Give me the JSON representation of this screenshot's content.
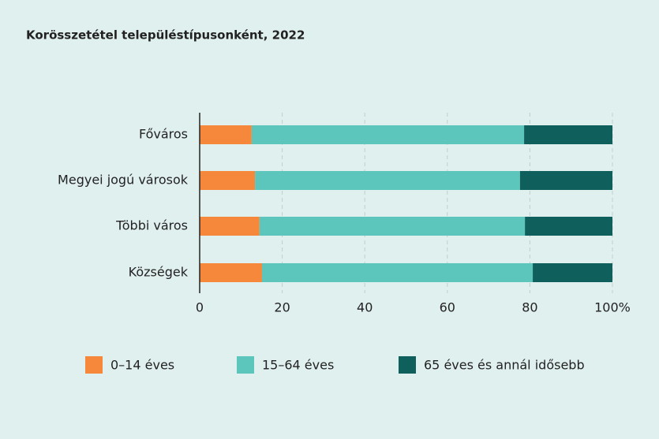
{
  "chart_data": {
    "type": "stacked_bar_horizontal",
    "title": "Korösszetétel településtípusonként, 2022",
    "categories": [
      "Főváros",
      "Megyei jogú városok",
      "Többi város",
      "Községek"
    ],
    "series": [
      {
        "name": "0–14 éves",
        "color": "#f5883a",
        "values": [
          12.6,
          13.4,
          14.5,
          15.1
        ]
      },
      {
        "name": "15–64 éves",
        "color": "#5cc6bd",
        "values": [
          66.0,
          64.2,
          64.3,
          65.6
        ]
      },
      {
        "name": "65 éves és annál idősebb",
        "color": "#0f5f5c",
        "values": [
          21.4,
          22.4,
          21.2,
          19.3
        ]
      }
    ],
    "xlim": [
      0,
      100
    ],
    "xticks": [
      0,
      20,
      40,
      60,
      80,
      {
        "value": 100,
        "label": "100%"
      }
    ],
    "grid": true
  }
}
